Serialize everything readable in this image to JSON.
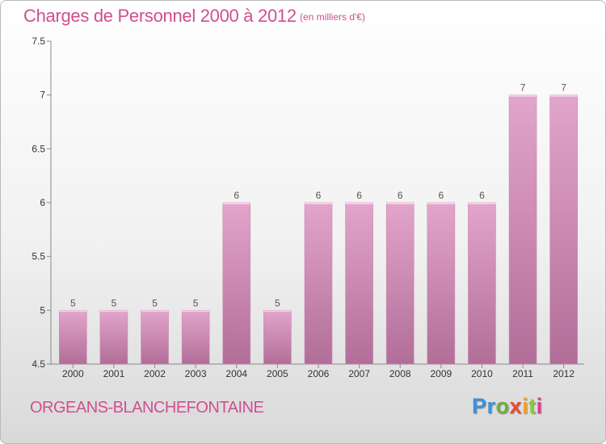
{
  "header": {
    "title": "Charges de Personnel 2000 à 2012",
    "unit": "(en milliers d'€)"
  },
  "commune": "ORGEANS-BLANCHEFONTAINE",
  "logo": {
    "letters": [
      "P",
      "r",
      "o",
      "x",
      "i",
      "t",
      "i"
    ]
  },
  "colors": {
    "accent": "#d04f8f",
    "bar_top": "#e3a5cb",
    "bar_bottom": "#b16e98"
  },
  "chart_data": {
    "type": "bar",
    "categories": [
      "2000",
      "2001",
      "2002",
      "2003",
      "2004",
      "2005",
      "2006",
      "2007",
      "2008",
      "2009",
      "2010",
      "2011",
      "2012"
    ],
    "values": [
      5,
      5,
      5,
      5,
      6,
      5,
      6,
      6,
      6,
      6,
      6,
      7,
      7
    ],
    "data_labels": [
      "5",
      "5",
      "5",
      "5",
      "6",
      "5",
      "6",
      "6",
      "6",
      "6",
      "6",
      "7",
      "7"
    ],
    "ylim": [
      4.5,
      7.5
    ],
    "yticks": [
      4.5,
      5,
      5.5,
      6,
      6.5,
      7,
      7.5
    ],
    "ytick_labels": [
      "4.5",
      "5",
      "5.5",
      "6",
      "6.5",
      "7",
      "7.5"
    ],
    "grid": false,
    "xlabel": "",
    "ylabel": ""
  }
}
